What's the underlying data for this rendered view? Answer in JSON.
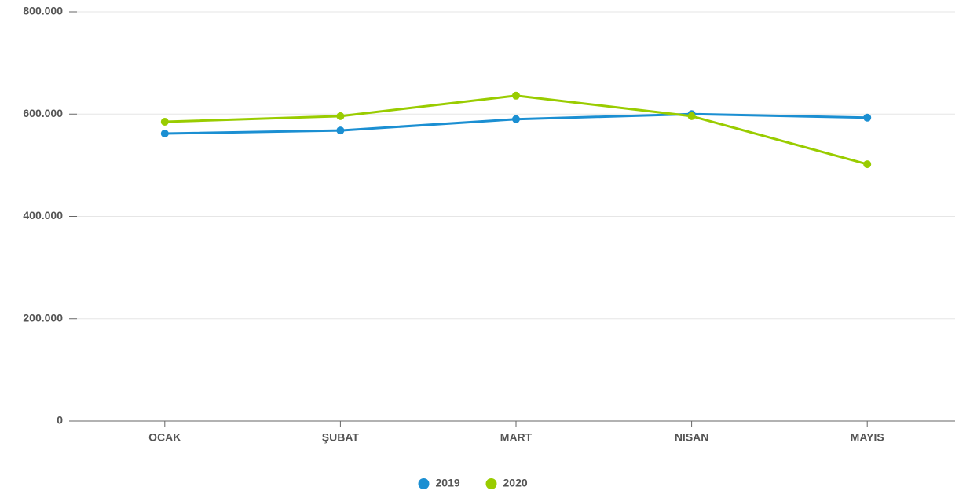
{
  "chart_data": {
    "type": "line",
    "categories": [
      "OCAK",
      "ŞUBAT",
      "MART",
      "NISAN",
      "MAYIS"
    ],
    "series": [
      {
        "name": "2019",
        "color": "#1b8fd2",
        "values": [
          562000,
          568000,
          590000,
          600000,
          593000
        ]
      },
      {
        "name": "2020",
        "color": "#99cc00",
        "values": [
          585000,
          596000,
          636000,
          596000,
          502000
        ]
      }
    ],
    "ylim": [
      0,
      800000
    ],
    "yticks": [
      0,
      {
        "value": 200000,
        "label": "200.000"
      },
      {
        "value": 400000,
        "label": "400.000"
      },
      {
        "value": 600000,
        "label": "600.000"
      },
      {
        "value": 800000,
        "label": "800.000"
      }
    ],
    "grid": true,
    "legend": "bottom"
  }
}
